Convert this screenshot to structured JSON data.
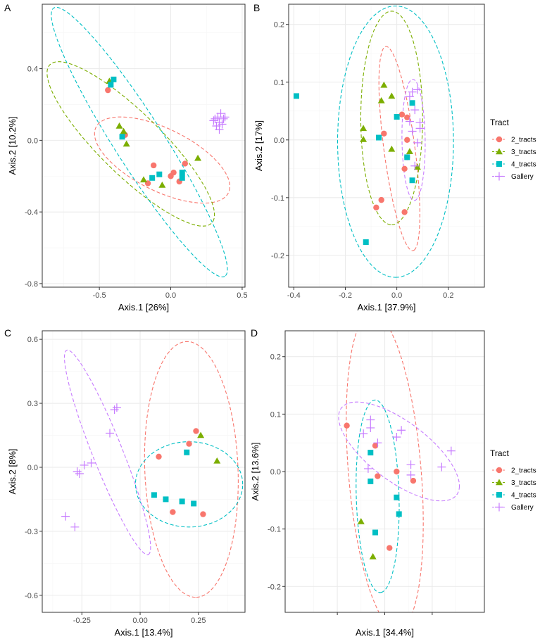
{
  "colors": {
    "2_tracts": "#F8766D",
    "3_tracts": "#7CAE00",
    "4_tracts": "#00BFC4",
    "Gallery": "#C77CFF",
    "grid_major": "#EBEBEB",
    "grid_minor": "#F5F5F5",
    "border": "#333333",
    "tick_text": "#4D4D4D"
  },
  "legend": {
    "title": "Tract",
    "entries": [
      {
        "key": "2_tracts",
        "label": "2_tracts",
        "shape": "circle"
      },
      {
        "key": "3_tracts",
        "label": "3_tracts",
        "shape": "triangle"
      },
      {
        "key": "4_tracts",
        "label": "4_tracts",
        "shape": "square"
      },
      {
        "key": "Gallery",
        "label": "Gallery",
        "shape": "plus"
      }
    ]
  },
  "chart_data": [
    {
      "panel": "A",
      "type": "scatter",
      "xlabel": "Axis.1   [26%]",
      "ylabel": "Axis.2   [10.2%]",
      "xlim": [
        -0.9,
        0.52
      ],
      "ylim": [
        -0.82,
        0.76
      ],
      "xticks": [
        -0.5,
        0.0,
        0.5
      ],
      "xtick_labels": [
        "-0.5",
        "0.0",
        "0.5"
      ],
      "yticks": [
        -0.8,
        -0.4,
        0.0,
        0.4
      ],
      "ytick_labels": [
        "-0.8",
        "-0.4",
        "0.0",
        "0.4"
      ],
      "show_legend": false,
      "series": [
        {
          "name": "2_tracts",
          "points": [
            [
              -0.44,
              0.28
            ],
            [
              -0.32,
              0.03
            ],
            [
              -0.12,
              -0.14
            ],
            [
              -0.16,
              -0.24
            ],
            [
              0.0,
              -0.2
            ],
            [
              0.02,
              -0.18
            ],
            [
              0.06,
              -0.23
            ],
            [
              0.1,
              -0.13
            ]
          ]
        },
        {
          "name": "3_tracts",
          "points": [
            [
              -0.43,
              0.33
            ],
            [
              -0.36,
              0.08
            ],
            [
              -0.33,
              0.05
            ],
            [
              -0.31,
              -0.02
            ],
            [
              -0.19,
              -0.22
            ],
            [
              -0.06,
              -0.25
            ],
            [
              0.19,
              -0.1
            ]
          ]
        },
        {
          "name": "4_tracts",
          "points": [
            [
              -0.4,
              0.34
            ],
            [
              -0.42,
              0.31
            ],
            [
              -0.34,
              0.02
            ],
            [
              -0.13,
              -0.21
            ],
            [
              -0.08,
              -0.19
            ],
            [
              0.08,
              -0.18
            ],
            [
              0.08,
              -0.21
            ]
          ]
        },
        {
          "name": "Gallery",
          "points": [
            [
              0.3,
              0.11
            ],
            [
              0.32,
              0.08
            ],
            [
              0.33,
              0.13
            ],
            [
              0.34,
              0.1
            ],
            [
              0.35,
              0.15
            ],
            [
              0.36,
              0.09
            ],
            [
              0.37,
              0.12
            ],
            [
              0.38,
              0.13
            ],
            [
              0.34,
              0.06
            ],
            [
              0.31,
              0.12
            ]
          ]
        }
      ],
      "ellipses": [
        {
          "group": "2_tracts",
          "cx": -0.06,
          "cy": -0.11,
          "rx": 0.5,
          "ry": 0.18,
          "angle": -20
        },
        {
          "group": "3_tracts",
          "cx": -0.28,
          "cy": -0.02,
          "rx": 0.72,
          "ry": 0.19,
          "angle": -37
        },
        {
          "group": "4_tracts",
          "cx": -0.22,
          "cy": -0.01,
          "rx": 0.96,
          "ry": 0.16,
          "angle": -51
        }
      ]
    },
    {
      "panel": "B",
      "type": "scatter",
      "xlabel": "Axis.1   [37.9%]",
      "ylabel": "Axis.2   [17%]",
      "xlim": [
        -0.42,
        0.34
      ],
      "ylim": [
        -0.255,
        0.235
      ],
      "xticks": [
        -0.4,
        -0.2,
        0.0,
        0.2
      ],
      "xtick_labels": [
        "-0.4",
        "-0.2",
        "0.0",
        "0.2"
      ],
      "yticks": [
        -0.2,
        -0.1,
        0.0,
        0.1,
        0.2
      ],
      "ytick_labels": [
        "-0.2",
        "-0.1",
        "0.0",
        "0.1",
        "0.2"
      ],
      "show_legend": true,
      "series": [
        {
          "name": "2_tracts",
          "points": [
            [
              -0.08,
              -0.117
            ],
            [
              -0.06,
              -0.104
            ],
            [
              -0.05,
              0.011
            ],
            [
              0.02,
              0.044
            ],
            [
              0.03,
              -0.05
            ],
            [
              0.04,
              0.0
            ],
            [
              0.04,
              -0.03
            ],
            [
              0.04,
              0.039
            ],
            [
              0.03,
              -0.125
            ]
          ]
        },
        {
          "name": "3_tracts",
          "points": [
            [
              -0.13,
              0.02
            ],
            [
              -0.13,
              0.001
            ],
            [
              -0.06,
              0.068
            ],
            [
              -0.05,
              0.095
            ],
            [
              -0.02,
              0.076
            ],
            [
              -0.02,
              -0.016
            ],
            [
              0.05,
              -0.02
            ],
            [
              0.08,
              -0.047
            ]
          ]
        },
        {
          "name": "4_tracts",
          "points": [
            [
              -0.39,
              0.076
            ],
            [
              -0.07,
              0.004
            ],
            [
              0.0,
              0.04
            ],
            [
              0.04,
              -0.03
            ],
            [
              0.06,
              0.064
            ],
            [
              0.06,
              -0.07
            ],
            [
              -0.12,
              -0.177
            ]
          ]
        },
        {
          "name": "Gallery",
          "points": [
            [
              0.05,
              0.075
            ],
            [
              0.06,
              0.083
            ],
            [
              0.07,
              0.052
            ],
            [
              0.08,
              0.087
            ],
            [
              0.05,
              0.032
            ],
            [
              0.06,
              0.015
            ],
            [
              0.09,
              0.02
            ],
            [
              0.08,
              -0.005
            ],
            [
              0.07,
              -0.045
            ],
            [
              0.09,
              0.03
            ]
          ]
        }
      ],
      "ellipses": [
        {
          "group": "2_tracts",
          "cx": 0.01,
          "cy": -0.015,
          "rx": 0.185,
          "ry": 0.058,
          "angle": -72
        },
        {
          "group": "3_tracts",
          "cx": -0.02,
          "cy": 0.038,
          "rx": 0.185,
          "ry": 0.12,
          "angle": -90
        },
        {
          "group": "4_tracts",
          "cx": -0.005,
          "cy": -0.003,
          "rx": 0.235,
          "ry": 0.225,
          "angle": -90
        },
        {
          "group": "Gallery",
          "cx": 0.065,
          "cy": 0.0,
          "rx": 0.105,
          "ry": 0.045,
          "angle": -88
        }
      ]
    },
    {
      "panel": "C",
      "type": "scatter",
      "xlabel": "Axis.1   [13.4%]",
      "ylabel": "Axis.2   [8%]",
      "xlim": [
        -0.42,
        0.45
      ],
      "ylim": [
        -0.68,
        0.64
      ],
      "xticks": [
        -0.25,
        0.0,
        0.25
      ],
      "xtick_labels": [
        "-0.25",
        "0.00",
        "0.25"
      ],
      "yticks": [
        -0.6,
        -0.3,
        0.0,
        0.3,
        0.6
      ],
      "ytick_labels": [
        "-0.6",
        "-0.3",
        "0.0",
        "0.3",
        "0.6"
      ],
      "show_legend": false,
      "series": [
        {
          "name": "2_tracts",
          "points": [
            [
              0.08,
              0.05
            ],
            [
              0.21,
              0.11
            ],
            [
              0.24,
              0.17
            ],
            [
              0.14,
              -0.21
            ],
            [
              0.27,
              -0.22
            ]
          ]
        },
        {
          "name": "3_tracts",
          "points": [
            [
              0.26,
              0.15
            ],
            [
              0.33,
              0.03
            ]
          ]
        },
        {
          "name": "4_tracts",
          "points": [
            [
              0.06,
              -0.13
            ],
            [
              0.11,
              -0.15
            ],
            [
              0.18,
              -0.16
            ],
            [
              0.23,
              -0.17
            ],
            [
              0.2,
              0.07
            ]
          ]
        },
        {
          "name": "Gallery",
          "points": [
            [
              -0.32,
              -0.23
            ],
            [
              -0.28,
              -0.28
            ],
            [
              -0.27,
              -0.02
            ],
            [
              -0.26,
              -0.03
            ],
            [
              -0.24,
              0.01
            ],
            [
              -0.21,
              0.02
            ],
            [
              -0.13,
              0.16
            ],
            [
              -0.11,
              0.27
            ],
            [
              -0.1,
              0.28
            ]
          ]
        }
      ],
      "ellipses": [
        {
          "group": "2_tracts",
          "cx": 0.22,
          "cy": -0.01,
          "rx": 0.6,
          "ry": 0.2,
          "angle": -88
        },
        {
          "group": "4_tracts",
          "cx": 0.21,
          "cy": -0.08,
          "rx": 0.23,
          "ry": 0.2,
          "angle": 0
        },
        {
          "group": "Gallery",
          "cx": -0.14,
          "cy": 0.07,
          "rx": 0.51,
          "ry": 0.065,
          "angle": -70
        }
      ]
    },
    {
      "panel": "D",
      "type": "scatter",
      "xlabel": "Axis.1   [34.4%]",
      "ylabel": "Axis.2   [13.6%]",
      "xlim": [
        -0.42,
        0.42
      ],
      "ylim": [
        -0.245,
        0.245
      ],
      "xticks": [
        -0.2,
        0.0,
        0.2
      ],
      "xtick_labels": [
        "",
        "",
        ""
      ],
      "yticks": [
        -0.2,
        -0.1,
        0.0,
        0.1,
        0.2
      ],
      "ytick_labels": [
        "-0.2",
        "-0.1",
        "0.0",
        "0.1",
        "0.2"
      ],
      "show_legend": true,
      "series": [
        {
          "name": "2_tracts",
          "points": [
            [
              -0.16,
              0.08
            ],
            [
              -0.04,
              0.045
            ],
            [
              -0.03,
              -0.008
            ],
            [
              0.05,
              0.0
            ],
            [
              0.12,
              -0.016
            ],
            [
              0.02,
              -0.133
            ]
          ]
        },
        {
          "name": "3_tracts",
          "points": [
            [
              -0.1,
              -0.087
            ],
            [
              -0.05,
              -0.148
            ]
          ]
        },
        {
          "name": "4_tracts",
          "points": [
            [
              -0.06,
              0.033
            ],
            [
              -0.06,
              -0.017
            ],
            [
              0.05,
              -0.045
            ],
            [
              0.06,
              -0.074
            ],
            [
              -0.04,
              -0.106
            ]
          ]
        },
        {
          "name": "Gallery",
          "points": [
            [
              -0.09,
              0.066
            ],
            [
              -0.06,
              0.09
            ],
            [
              -0.06,
              0.076
            ],
            [
              -0.07,
              0.005
            ],
            [
              -0.03,
              0.05
            ],
            [
              0.05,
              0.06
            ],
            [
              0.07,
              0.072
            ],
            [
              0.11,
              0.012
            ],
            [
              0.11,
              -0.006
            ],
            [
              0.24,
              0.008
            ],
            [
              0.28,
              0.036
            ]
          ]
        }
      ],
      "ellipses": [
        {
          "group": "2_tracts",
          "cx": 0.0,
          "cy": 0.0,
          "rx": 0.283,
          "ry": 0.15,
          "angle": -75
        },
        {
          "group": "4_tracts",
          "cx": -0.03,
          "cy": -0.043,
          "rx": 0.168,
          "ry": 0.09,
          "angle": -85
        },
        {
          "group": "Gallery",
          "cx": 0.06,
          "cy": 0.035,
          "rx": 0.262,
          "ry": 0.06,
          "angle": -14
        }
      ]
    }
  ]
}
